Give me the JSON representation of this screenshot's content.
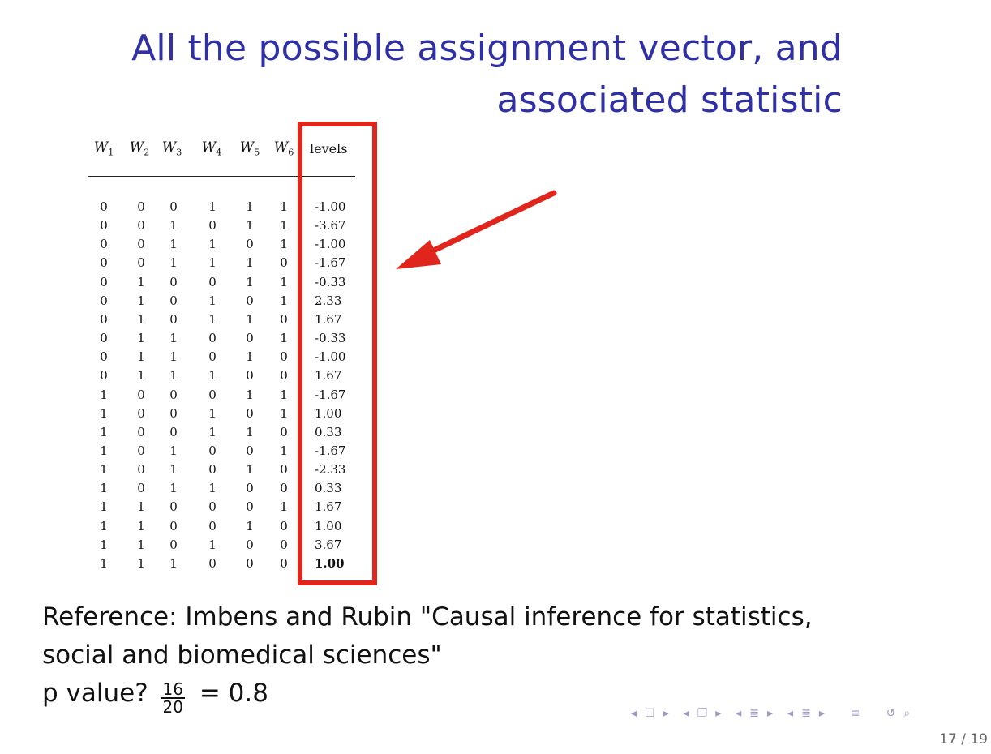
{
  "title": {
    "line1": "All the possible assignment vector, and",
    "line2": "associated statistic"
  },
  "table": {
    "headers": [
      "W",
      "W",
      "W",
      "W",
      "W",
      "W"
    ],
    "header_subscripts": [
      "1",
      "2",
      "3",
      "4",
      "5",
      "6"
    ],
    "levels_header": "levels",
    "rows": [
      {
        "w": [
          "0",
          "0",
          "0",
          "1",
          "1",
          "1"
        ],
        "level": "-1.00"
      },
      {
        "w": [
          "0",
          "0",
          "1",
          "0",
          "1",
          "1"
        ],
        "level": "-3.67"
      },
      {
        "w": [
          "0",
          "0",
          "1",
          "1",
          "0",
          "1"
        ],
        "level": "-1.00"
      },
      {
        "w": [
          "0",
          "0",
          "1",
          "1",
          "1",
          "0"
        ],
        "level": "-1.67"
      },
      {
        "w": [
          "0",
          "1",
          "0",
          "0",
          "1",
          "1"
        ],
        "level": "-0.33"
      },
      {
        "w": [
          "0",
          "1",
          "0",
          "1",
          "0",
          "1"
        ],
        "level": "2.33"
      },
      {
        "w": [
          "0",
          "1",
          "0",
          "1",
          "1",
          "0"
        ],
        "level": "1.67"
      },
      {
        "w": [
          "0",
          "1",
          "1",
          "0",
          "0",
          "1"
        ],
        "level": "-0.33"
      },
      {
        "w": [
          "0",
          "1",
          "1",
          "0",
          "1",
          "0"
        ],
        "level": "-1.00"
      },
      {
        "w": [
          "0",
          "1",
          "1",
          "1",
          "0",
          "0"
        ],
        "level": "1.67"
      },
      {
        "w": [
          "1",
          "0",
          "0",
          "0",
          "1",
          "1"
        ],
        "level": "-1.67"
      },
      {
        "w": [
          "1",
          "0",
          "0",
          "1",
          "0",
          "1"
        ],
        "level": "1.00"
      },
      {
        "w": [
          "1",
          "0",
          "0",
          "1",
          "1",
          "0"
        ],
        "level": "0.33"
      },
      {
        "w": [
          "1",
          "0",
          "1",
          "0",
          "0",
          "1"
        ],
        "level": "-1.67"
      },
      {
        "w": [
          "1",
          "0",
          "1",
          "0",
          "1",
          "0"
        ],
        "level": "-2.33"
      },
      {
        "w": [
          "1",
          "0",
          "1",
          "1",
          "0",
          "0"
        ],
        "level": "0.33"
      },
      {
        "w": [
          "1",
          "1",
          "0",
          "0",
          "0",
          "1"
        ],
        "level": "1.67"
      },
      {
        "w": [
          "1",
          "1",
          "0",
          "0",
          "1",
          "0"
        ],
        "level": "1.00"
      },
      {
        "w": [
          "1",
          "1",
          "0",
          "1",
          "0",
          "0"
        ],
        "level": "3.67"
      },
      {
        "w": [
          "1",
          "1",
          "1",
          "0",
          "0",
          "0"
        ],
        "level": "1.00",
        "bold": true
      }
    ]
  },
  "reference": {
    "line1": "Reference: Imbens and Rubin \"Causal inference for statistics,",
    "line2": "social and biomedical sciences\"",
    "pvalue_prefix": "p value?",
    "numerator": "16",
    "denominator": "20",
    "pvalue_result": "= 0.8"
  },
  "colors": {
    "title": "#2f2fa6",
    "highlight": "#e0251c",
    "nav": "#9b9bc8"
  },
  "nav_icons": [
    "nav-prev-frame-icon",
    "nav-frame-icon",
    "nav-next-frame-icon",
    "nav-prev-section-icon",
    "nav-section-icon",
    "nav-next-section-icon",
    "nav-prev-subsection-icon",
    "nav-subsection-icon",
    "nav-next-subsection-icon",
    "nav-align-icon",
    "nav-undo-icon",
    "nav-search-icon"
  ],
  "page": {
    "current": "17",
    "total": "19",
    "label": "17 / 19"
  }
}
